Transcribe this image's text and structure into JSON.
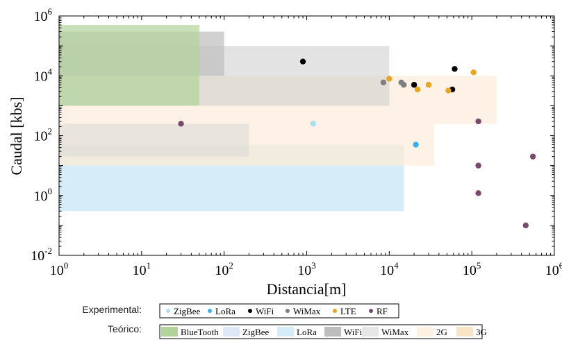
{
  "chart_data": {
    "type": "scatter",
    "xlabel": "Distancia[m]",
    "ylabel": "Caudal [kbs]",
    "x_scale": "log",
    "y_scale": "log",
    "xlim": [
      1,
      1000000
    ],
    "ylim": [
      0.01,
      1000000
    ],
    "x_ticks": [
      {
        "base": "10",
        "exp": "0",
        "value": 1
      },
      {
        "base": "10",
        "exp": "1",
        "value": 10
      },
      {
        "base": "10",
        "exp": "2",
        "value": 100
      },
      {
        "base": "10",
        "exp": "3",
        "value": 1000
      },
      {
        "base": "10",
        "exp": "4",
        "value": 10000
      },
      {
        "base": "10",
        "exp": "5",
        "value": 100000
      },
      {
        "base": "10",
        "exp": "6",
        "value": 1000000
      }
    ],
    "y_ticks": [
      {
        "base": "10",
        "exp": "-2",
        "value": 0.01
      },
      {
        "base": "10",
        "exp": "0",
        "value": 1
      },
      {
        "base": "10",
        "exp": "2",
        "value": 100
      },
      {
        "base": "10",
        "exp": "4",
        "value": 10000
      },
      {
        "base": "10",
        "exp": "6",
        "value": 1000000
      }
    ],
    "grid": false,
    "theoretical_regions": [
      {
        "name": "ZigBee",
        "x": [
          1,
          15000
        ],
        "y": [
          0.3,
          10
        ],
        "color": "#d6edf9",
        "opacity": 1
      },
      {
        "name": "LoRa",
        "x": [
          1,
          15000
        ],
        "y": [
          10,
          50
        ],
        "color": "#e2f0ea",
        "opacity": 1
      },
      {
        "name": "3G",
        "x": [
          1,
          35000
        ],
        "y": [
          10,
          250
        ],
        "color": "#fbe9d4",
        "opacity": 0.6
      },
      {
        "name": "2G",
        "x": [
          1,
          200000
        ],
        "y": [
          250,
          10000
        ],
        "color": "#fbe9d4",
        "opacity": 0.6
      },
      {
        "name": "WiMax",
        "x": [
          1,
          200
        ],
        "y": [
          20,
          250
        ],
        "color": "#d9d9d9",
        "opacity": 0.55
      },
      {
        "name": "WiFi",
        "x": [
          1,
          10000
        ],
        "y": [
          1000,
          100000
        ],
        "color": "#cccccc",
        "opacity": 0.55
      },
      {
        "name": "WiFi",
        "x": [
          1,
          100
        ],
        "y": [
          10000,
          300000
        ],
        "color": "#bdbdbd",
        "opacity": 0.7
      },
      {
        "name": "BlueTooth",
        "x": [
          1,
          50
        ],
        "y": [
          1000,
          500000
        ],
        "color": "#b2d39a",
        "opacity": 0.7
      }
    ],
    "series": [
      {
        "name": "ZigBee",
        "color": "#a9def5",
        "points": [
          [
            1200,
            250
          ]
        ]
      },
      {
        "name": "LoRa",
        "color": "#3bb0e8",
        "points": [
          [
            21000,
            50
          ]
        ]
      },
      {
        "name": "WiFi",
        "color": "#000000",
        "points": [
          [
            900,
            30000
          ],
          [
            20000,
            5000
          ],
          [
            58000,
            3500
          ],
          [
            62000,
            17000
          ]
        ]
      },
      {
        "name": "WiMax",
        "color": "#7f7f7f",
        "points": [
          [
            8500,
            6000
          ],
          [
            14000,
            6000
          ],
          [
            15000,
            5000
          ]
        ]
      },
      {
        "name": "LTE",
        "color": "#e8a423",
        "points": [
          [
            10000,
            8000
          ],
          [
            22000,
            3500
          ],
          [
            30000,
            5000
          ],
          [
            52000,
            3200
          ],
          [
            105000,
            13000
          ]
        ]
      },
      {
        "name": "RF",
        "color": "#7a4a6c",
        "points": [
          [
            30,
            250
          ],
          [
            120000,
            300
          ],
          [
            120000,
            10
          ],
          [
            120000,
            1.2
          ],
          [
            450000,
            0.1
          ],
          [
            550000,
            20
          ]
        ]
      }
    ],
    "legend": {
      "placement": "bottom",
      "experimental_title": "Experimental:",
      "experimental_items": [
        {
          "label": "ZigBee",
          "color": "#a9def5"
        },
        {
          "label": "LoRa",
          "color": "#3bb0e8"
        },
        {
          "label": "WiFi",
          "color": "#000000"
        },
        {
          "label": "WiMax",
          "color": "#7f7f7f"
        },
        {
          "label": "LTE",
          "color": "#e8a423"
        },
        {
          "label": "RF",
          "color": "#7a4a6c"
        }
      ],
      "theoretical_title": "Teórico:",
      "theoretical_items": [
        {
          "label": "BlueTooth",
          "color": "#b2d39a"
        },
        {
          "label": "ZigBee",
          "color": "#dde8f7"
        },
        {
          "label": "LoRa",
          "color": "#d6edf9"
        },
        {
          "label": "WiFi",
          "color": "#bdbdbd"
        },
        {
          "label": "WiMax",
          "color": "#e6e6e6"
        },
        {
          "label": "2G",
          "color": "#fdf1e2"
        },
        {
          "label": "3G",
          "color": "#f9e3c6"
        }
      ]
    }
  }
}
